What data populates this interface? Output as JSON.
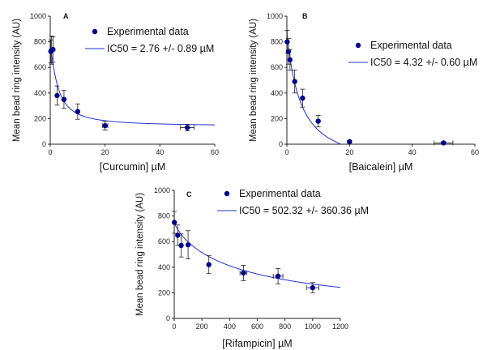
{
  "chart_data": [
    {
      "type": "scatter",
      "panel_label": "A",
      "xlabel": "[Curcumin] µM",
      "ylabel": "Mean bead ring intensity (AU)",
      "xlim": [
        0,
        60
      ],
      "ylim": [
        0,
        1000
      ],
      "xticks": [
        0,
        20,
        40,
        60
      ],
      "yticks": [
        0,
        200,
        400,
        600,
        800,
        1000
      ],
      "legend_position": "top-right",
      "series": [
        {
          "name": "Experimental data",
          "kind": "points",
          "color": "#00008B",
          "points": [
            {
              "x": 0.2,
              "y": 725,
              "yerr": 90
            },
            {
              "x": 0.5,
              "y": 735,
              "yerr": 110
            },
            {
              "x": 1,
              "y": 740,
              "yerr": 100
            },
            {
              "x": 2.5,
              "y": 380,
              "yerr": 75
            },
            {
              "x": 5,
              "y": 350,
              "yerr": 70
            },
            {
              "x": 10,
              "y": 255,
              "yerr": 60,
              "xerr": 0.5
            },
            {
              "x": 20,
              "y": 145,
              "yerr": 35,
              "xerr": 1
            },
            {
              "x": 50,
              "y": 130,
              "yerr": 25,
              "xerr": 2.5
            }
          ]
        },
        {
          "name": "IC50 = 2.76 +/- 0.89 µM",
          "kind": "fit",
          "color": "#2233CC",
          "bottom": 140,
          "top": 760,
          "ic50": 2.76,
          "hill": 1.3
        }
      ]
    },
    {
      "type": "scatter",
      "panel_label": "B",
      "xlabel": "[Baicalein] µM",
      "ylabel": "Mean bead ring intensity (AU)",
      "xlim": [
        0,
        60
      ],
      "ylim": [
        0,
        1000
      ],
      "xticks": [
        0,
        20,
        40,
        60
      ],
      "yticks": [
        0,
        200,
        400,
        600,
        800,
        1000
      ],
      "legend_position": "top-right",
      "series": [
        {
          "name": "Experimental data",
          "kind": "points",
          "color": "#00008B",
          "points": [
            {
              "x": 0.1,
              "y": 800,
              "yerr": 90
            },
            {
              "x": 0.5,
              "y": 725,
              "yerr": 100
            },
            {
              "x": 1,
              "y": 660,
              "yerr": 80
            },
            {
              "x": 2.5,
              "y": 490,
              "yerr": 90
            },
            {
              "x": 5,
              "y": 360,
              "yerr": 70
            },
            {
              "x": 10,
              "y": 180,
              "yerr": 45
            },
            {
              "x": 20,
              "y": 20,
              "yerr": 10
            },
            {
              "x": 50,
              "y": 10,
              "yerr": 8,
              "xerr": 3
            }
          ]
        },
        {
          "name": "IC50 = 4.32 +/- 0.60 µM",
          "kind": "fit",
          "color": "#2233CC",
          "bottom": -200,
          "top": 860,
          "ic50": 4.32,
          "hill": 1.05
        }
      ]
    },
    {
      "type": "scatter",
      "panel_label": "C",
      "xlabel": "[Rifampicin] µM",
      "ylabel": "Mean bead ring intensity (AU)",
      "xlim": [
        0,
        1200
      ],
      "ylim": [
        0,
        1000
      ],
      "xticks": [
        0,
        200,
        400,
        600,
        800,
        1000,
        1200
      ],
      "yticks": [
        0,
        200,
        400,
        600,
        800,
        1000
      ],
      "legend_position": "top-right",
      "series": [
        {
          "name": "Experimental data",
          "kind": "points",
          "color": "#00008B",
          "points": [
            {
              "x": 1,
              "y": 750,
              "yerr": 85
            },
            {
              "x": 25,
              "y": 650,
              "yerr": 80
            },
            {
              "x": 50,
              "y": 570,
              "yerr": 90
            },
            {
              "x": 100,
              "y": 575,
              "yerr": 110
            },
            {
              "x": 250,
              "y": 420,
              "yerr": 70
            },
            {
              "x": 500,
              "y": 355,
              "yerr": 60,
              "xerr": 25
            },
            {
              "x": 750,
              "y": 330,
              "yerr": 60,
              "xerr": 35
            },
            {
              "x": 1000,
              "y": 240,
              "yerr": 40,
              "xerr": 45
            }
          ]
        },
        {
          "name": "IC50 = 502.32 +/- 360.36 µM",
          "kind": "fit",
          "color": "#2233CC",
          "bottom": 0,
          "top": 750,
          "ic50": 502.32,
          "hill": 0.85
        }
      ]
    }
  ]
}
